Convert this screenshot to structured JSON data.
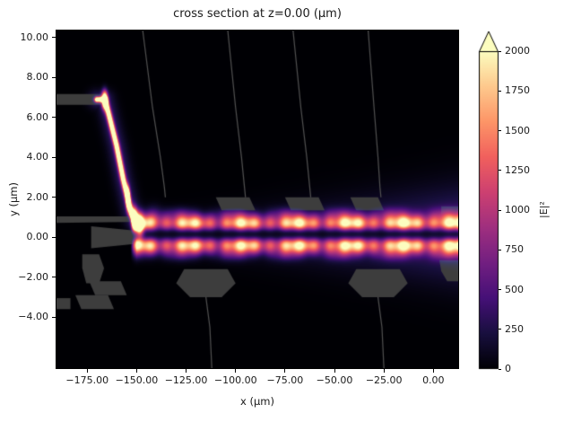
{
  "window": {
    "title": "cross section at z=0.00 (μm)"
  },
  "chart_data": {
    "type": "heatmap",
    "title": "cross section at z=0.00 (μm)",
    "xlabel": "x (μm)",
    "ylabel": "y (μm)",
    "xlim": [
      -191,
      13
    ],
    "ylim": [
      -6.6,
      10.4
    ],
    "xticks": [
      -175,
      -150,
      -125,
      -100,
      -75,
      -50,
      -25,
      0
    ],
    "xtick_labels": [
      "−175.00",
      "−150.00",
      "−125.00",
      "−100.00",
      "−75.00",
      "−50.00",
      "−25.00",
      "0.00"
    ],
    "yticks": [
      10,
      8,
      6,
      4,
      2,
      0,
      -2,
      -4
    ],
    "ytick_labels": [
      "10.00",
      "8.00",
      "6.00",
      "4.00",
      "2.00",
      "0.00",
      "−2.00",
      "−4.00"
    ],
    "grid": false,
    "colormap": "magma",
    "vmin": 0,
    "vmax": 2000,
    "colorbar": {
      "label": "|E|²",
      "ticks": [
        0,
        250,
        500,
        750,
        1000,
        1250,
        1500,
        1750,
        2000
      ],
      "tick_labels": [
        "0",
        "250",
        "500",
        "750",
        "1000",
        "1250",
        "1500",
        "1750",
        "2000"
      ],
      "extend": "max",
      "position": "right"
    },
    "description": "Simulated optical field intensity |E|² at z=0 of a photonic chip: light enters an upper waveguide near y=6.9 μm, descends through a steep S-bend around x=-166..-150 μm, and couples into a horizontal guide near y=0 μm carrying a two-lobed interference beam (bright stripes at y≈+0.7 and y≈-0.4 with a dark centerline) to the right edge; translucent gray outlines show the device geometry.",
    "features": {
      "beam": {
        "x_start": -150,
        "y_center": 0.15,
        "lobe_offset": 0.55,
        "lobe_sigma": 0.3,
        "peak": 2100,
        "beat_period": 27,
        "ripple_period": 7.5,
        "halo_peak": 520,
        "halo_sigma0": 0.55,
        "halo_sigma_grow": 0.006,
        "side_peak": 300,
        "side_offset": 1.05
      },
      "bend_peak": 2600,
      "bend_glow": 380,
      "bend_path": [
        [
          -170,
          6.9
        ],
        [
          -166,
          6.9
        ],
        [
          -164.2,
          6.2
        ],
        [
          -160.2,
          4.6
        ],
        [
          -156.8,
          2.9
        ],
        [
          -154.4,
          1.9
        ],
        [
          -152.6,
          1.15
        ],
        [
          -151,
          0.8
        ],
        [
          -149.3,
          0.6
        ]
      ],
      "hotspots": [
        [
          -166.2,
          6.9,
          2800,
          1.0,
          0.28
        ],
        [
          -154.4,
          1.95,
          2500,
          0.7,
          0.35
        ],
        [
          -151.2,
          0.9,
          2700,
          1.0,
          0.35
        ],
        [
          -148.5,
          0.55,
          1600,
          1.4,
          0.4
        ],
        [
          -141.5,
          1.05,
          420,
          3.0,
          0.35
        ],
        [
          -143.0,
          -0.55,
          330,
          3.0,
          0.3
        ]
      ],
      "overlay_polygons": [
        {
          "name": "input-waveguide-bar",
          "points": [
            [
              -191,
              7.17
            ],
            [
              -165.8,
              7.17
            ],
            [
              -165.8,
              6.63
            ],
            [
              -191,
              6.63
            ]
          ]
        },
        {
          "name": "upper-slab-band",
          "points": [
            [
              -191,
              1.05
            ],
            [
              -151,
              1.05
            ],
            [
              -147.5,
              0.78
            ],
            [
              -191,
              0.72
            ]
          ]
        },
        {
          "name": "left-hexagon",
          "points": [
            [
              -177.5,
              -0.85
            ],
            [
              -169,
              -0.85
            ],
            [
              -166.5,
              -1.55
            ],
            [
              -169,
              -2.3
            ],
            [
              -175.5,
              -2.3
            ],
            [
              -177.5,
              -1.55
            ]
          ]
        },
        {
          "name": "center-taper",
          "points": [
            [
              -173,
              0.55
            ],
            [
              -149,
              0.32
            ],
            [
              -149,
              -0.32
            ],
            [
              -173,
              -0.55
            ]
          ]
        },
        {
          "name": "lower-bar-a",
          "points": [
            [
              -181,
              -2.9
            ],
            [
              -164.5,
              -2.9
            ],
            [
              -161.5,
              -3.6
            ],
            [
              -178,
              -3.6
            ]
          ]
        },
        {
          "name": "lower-bar-b",
          "points": [
            [
              -174,
              -2.2
            ],
            [
              -158,
              -2.2
            ],
            [
              -155,
              -2.9
            ],
            [
              -171,
              -2.9
            ]
          ]
        },
        {
          "name": "left-edge-rect",
          "points": [
            [
              -191,
              -3.05
            ],
            [
              -183.5,
              -3.05
            ],
            [
              -183.5,
              -3.6
            ],
            [
              -191,
              -3.6
            ]
          ]
        },
        {
          "name": "bottom-pad-1",
          "points": [
            [
              -126,
              -1.6
            ],
            [
              -104,
              -1.6
            ],
            [
              -100,
              -2.3
            ],
            [
              -107,
              -3.0
            ],
            [
              -123,
              -3.0
            ],
            [
              -130,
              -2.3
            ]
          ]
        },
        {
          "name": "bottom-pad-2",
          "points": [
            [
              -39,
              -1.6
            ],
            [
              -17,
              -1.6
            ],
            [
              -13,
              -2.3
            ],
            [
              -20,
              -3.0
            ],
            [
              -36,
              -3.0
            ],
            [
              -43,
              -2.3
            ]
          ]
        },
        {
          "name": "bottom-right-piece",
          "points": [
            [
              3,
              -1.15
            ],
            [
              13,
              -1.15
            ],
            [
              13,
              -2.2
            ],
            [
              7,
              -2.2
            ],
            [
              4,
              -1.7
            ]
          ]
        },
        {
          "name": "top-pad-1",
          "points": [
            [
              -110,
              2.0
            ],
            [
              -93,
              2.0
            ],
            [
              -90,
              1.35
            ],
            [
              -107,
              1.35
            ]
          ]
        },
        {
          "name": "top-pad-2",
          "points": [
            [
              -75,
              2.0
            ],
            [
              -58,
              2.0
            ],
            [
              -55,
              1.35
            ],
            [
              -72,
              1.35
            ]
          ]
        },
        {
          "name": "top-pad-3",
          "points": [
            [
              -42,
              2.0
            ],
            [
              -28,
              2.0
            ],
            [
              -25,
              1.35
            ],
            [
              -39,
              1.35
            ]
          ]
        },
        {
          "name": "right-top-bar",
          "points": [
            [
              4,
              1.55
            ],
            [
              13,
              1.55
            ],
            [
              13,
              0.95
            ],
            [
              4,
              0.95
            ]
          ]
        }
      ],
      "overlay_curves": [
        [
          [
            -147,
            10.4
          ],
          [
            -142,
            6.5
          ],
          [
            -138,
            4
          ],
          [
            -136,
            2.5
          ],
          [
            -135.5,
            2.0
          ]
        ],
        [
          [
            -104,
            10.4
          ],
          [
            -100,
            6.5
          ],
          [
            -97,
            4
          ],
          [
            -95.5,
            2.5
          ],
          [
            -95,
            2.0
          ]
        ],
        [
          [
            -71,
            10.4
          ],
          [
            -67,
            6.5
          ],
          [
            -64,
            4
          ],
          [
            -62.5,
            2.5
          ],
          [
            -62,
            2.0
          ]
        ],
        [
          [
            -33,
            10.4
          ],
          [
            -30,
            6.5
          ],
          [
            -28,
            4
          ],
          [
            -27,
            2.5
          ],
          [
            -26.5,
            2.0
          ]
        ],
        [
          [
            -115,
            -3.0
          ],
          [
            -113,
            -4.5
          ],
          [
            -112,
            -6.6
          ]
        ],
        [
          [
            -28,
            -3.0
          ],
          [
            -26,
            -4.5
          ],
          [
            -25,
            -6.6
          ]
        ]
      ]
    }
  },
  "colors": {
    "figure_background": "#ffffff",
    "plot_background": "#000004",
    "text": "#1a1a1a",
    "frame": "#000000",
    "overlay_gray": "#3d3d3d",
    "curve_gray": "#505050",
    "magma_stops": [
      "#000004",
      "#180f3e",
      "#451077",
      "#721f81",
      "#9f2f7f",
      "#cd4071",
      "#f1605d",
      "#fd9567",
      "#fec98d",
      "#fcfdbf"
    ]
  }
}
